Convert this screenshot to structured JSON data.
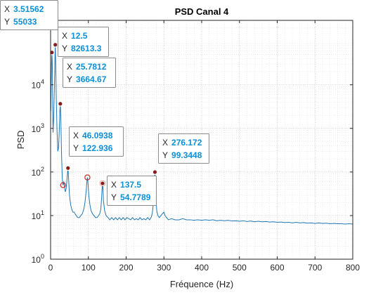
{
  "chart_data": {
    "type": "line",
    "title": "PSD Canal 4",
    "xlabel": "Fréquence (Hz)",
    "ylabel": "PSD",
    "x_scale": "linear",
    "y_scale": "log",
    "xlim": [
      0,
      800
    ],
    "ylim": [
      1,
      300000
    ],
    "x_ticks": [
      0,
      100,
      200,
      300,
      400,
      500,
      600,
      700,
      800
    ],
    "y_ticks": [
      1,
      10,
      100,
      1000,
      10000
    ],
    "y_tick_labels": [
      "10^0",
      "10^1",
      "10^2",
      "10^3",
      "10^4"
    ],
    "grid": true,
    "minor_grid": true,
    "colors": {
      "line": "#1f77b4",
      "marker_fill": "#8b1a1a",
      "circle": "#d62728",
      "datatip_text": "#0b8fd9"
    },
    "series": [
      {
        "color": "#1f77b4",
        "points": [
          [
            0.5,
            2500
          ],
          [
            1.5,
            9000
          ],
          [
            2.5,
            30000
          ],
          [
            3.51562,
            55033
          ],
          [
            4.5,
            30000
          ],
          [
            5.5,
            3000
          ],
          [
            6.5,
            800
          ],
          [
            8,
            1500
          ],
          [
            10,
            8000
          ],
          [
            11.5,
            40000
          ],
          [
            12.5,
            82613.3
          ],
          [
            13.5,
            35000
          ],
          [
            15,
            5000
          ],
          [
            17,
            900
          ],
          [
            19,
            300
          ],
          [
            21,
            350
          ],
          [
            23,
            900
          ],
          [
            24.5,
            2500
          ],
          [
            25.7812,
            3664.67
          ],
          [
            27,
            1800
          ],
          [
            29,
            250
          ],
          [
            31,
            70
          ],
          [
            33,
            50
          ],
          [
            35,
            60
          ],
          [
            37,
            45
          ],
          [
            39,
            35
          ],
          [
            41,
            40
          ],
          [
            43,
            60
          ],
          [
            45,
            100
          ],
          [
            46.0938,
            122.936
          ],
          [
            48,
            60
          ],
          [
            50,
            30
          ],
          [
            53,
            18
          ],
          [
            56,
            14
          ],
          [
            59,
            12
          ],
          [
            62,
            12
          ],
          [
            65,
            11
          ],
          [
            68,
            10
          ],
          [
            72,
            9
          ],
          [
            76,
            9
          ],
          [
            80,
            10
          ],
          [
            84,
            11
          ],
          [
            88,
            14
          ],
          [
            91,
            20
          ],
          [
            94,
            35
          ],
          [
            96,
            60
          ],
          [
            97.5,
            75
          ],
          [
            99,
            55
          ],
          [
            101,
            30
          ],
          [
            104,
            18
          ],
          [
            107,
            13
          ],
          [
            111,
            11
          ],
          [
            115,
            10
          ],
          [
            119,
            9
          ],
          [
            123,
            9
          ],
          [
            127,
            10
          ],
          [
            130,
            11
          ],
          [
            133,
            14
          ],
          [
            135,
            25
          ],
          [
            136.5,
            45
          ],
          [
            137.5,
            54.7789
          ],
          [
            138.5,
            45
          ],
          [
            140,
            22
          ],
          [
            143,
            13
          ],
          [
            147,
            10
          ],
          [
            152,
            9
          ],
          [
            157,
            8
          ],
          [
            162,
            9
          ],
          [
            167,
            8
          ],
          [
            172,
            9
          ],
          [
            177,
            8
          ],
          [
            182,
            9
          ],
          [
            187,
            8
          ],
          [
            192,
            9
          ],
          [
            197,
            8
          ],
          [
            202,
            9
          ],
          [
            207,
            8.5
          ],
          [
            212,
            8
          ],
          [
            217,
            9
          ],
          [
            222,
            8
          ],
          [
            227,
            8.5
          ],
          [
            232,
            8
          ],
          [
            237,
            9
          ],
          [
            242,
            8
          ],
          [
            247,
            8.5
          ],
          [
            252,
            8
          ],
          [
            257,
            9
          ],
          [
            262,
            8
          ],
          [
            266,
            9
          ],
          [
            269,
            11
          ],
          [
            271,
            15
          ],
          [
            273,
            30
          ],
          [
            274.5,
            60
          ],
          [
            276.172,
            99.3448
          ],
          [
            277.5,
            60
          ],
          [
            279,
            25
          ],
          [
            281,
            13
          ],
          [
            284,
            10
          ],
          [
            288,
            9
          ],
          [
            292,
            10
          ],
          [
            296,
            11
          ],
          [
            300,
            12
          ],
          [
            303,
            10
          ],
          [
            307,
            9
          ],
          [
            312,
            8
          ],
          [
            320,
            8.5
          ],
          [
            330,
            8
          ],
          [
            340,
            8
          ],
          [
            350,
            8.5
          ],
          [
            360,
            8
          ],
          [
            370,
            8
          ],
          [
            380,
            7.8
          ],
          [
            390,
            8
          ],
          [
            400,
            7.8
          ],
          [
            410,
            8
          ],
          [
            420,
            7.8
          ],
          [
            430,
            8
          ],
          [
            440,
            7.6
          ],
          [
            450,
            7.8
          ],
          [
            460,
            7.6
          ],
          [
            470,
            7.8
          ],
          [
            480,
            7.5
          ],
          [
            490,
            7.6
          ],
          [
            500,
            7.4
          ],
          [
            510,
            7.6
          ],
          [
            520,
            7.3
          ],
          [
            530,
            7.5
          ],
          [
            540,
            7.2
          ],
          [
            550,
            7.4
          ],
          [
            560,
            7.2
          ],
          [
            570,
            7.3
          ],
          [
            580,
            7.1
          ],
          [
            590,
            7.2
          ],
          [
            600,
            7
          ],
          [
            610,
            7.1
          ],
          [
            620,
            6.9
          ],
          [
            630,
            7
          ],
          [
            640,
            6.8
          ],
          [
            650,
            7
          ],
          [
            660,
            6.8
          ],
          [
            670,
            6.9
          ],
          [
            680,
            6.7
          ],
          [
            690,
            6.8
          ],
          [
            700,
            6.6
          ],
          [
            710,
            6.8
          ],
          [
            720,
            6.6
          ],
          [
            730,
            6.7
          ],
          [
            740,
            6.5
          ],
          [
            750,
            6.6
          ],
          [
            760,
            6.5
          ],
          [
            770,
            6.5
          ],
          [
            780,
            6.4
          ],
          [
            790,
            6.5
          ],
          [
            800,
            6.4
          ]
        ]
      }
    ],
    "marked_points": [
      {
        "x": 3.51562,
        "y": 55033
      },
      {
        "x": 12.5,
        "y": 82613.3
      },
      {
        "x": 25.7812,
        "y": 3664.67
      },
      {
        "x": 46.0938,
        "y": 122.936
      },
      {
        "x": 137.5,
        "y": 54.7789
      },
      {
        "x": 276.172,
        "y": 99.3448
      }
    ],
    "circled_points": [
      {
        "x": 33,
        "y": 50
      },
      {
        "x": 97.5,
        "y": 75
      },
      {
        "x": 137.5,
        "y": 54.7789
      }
    ],
    "datatips": [
      {
        "x_label": "X",
        "x_value": "3.51562",
        "y_label": "Y",
        "y_value": "55033"
      },
      {
        "x_label": "X",
        "x_value": "12.5",
        "y_label": "Y",
        "y_value": "82613.3"
      },
      {
        "x_label": "X",
        "x_value": "25.7812",
        "y_label": "Y",
        "y_value": "3664.67"
      },
      {
        "x_label": "X",
        "x_value": "46.0938",
        "y_label": "Y",
        "y_value": "122.936"
      },
      {
        "x_label": "X",
        "x_value": "137.5",
        "y_label": "Y",
        "y_value": "54.7789"
      },
      {
        "x_label": "X",
        "x_value": "276.172",
        "y_label": "Y",
        "y_value": "99.3448"
      }
    ]
  }
}
